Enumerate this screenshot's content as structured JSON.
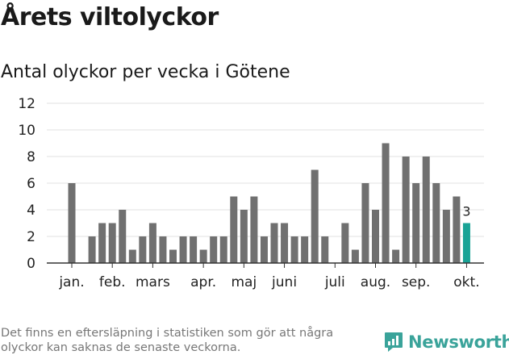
{
  "header": {
    "title": "Årets viltolyckor",
    "subtitle": "Antal olyckor per vecka i Götene"
  },
  "footer": {
    "note": "Det finns en eftersläpning i statistiken som gör att några olyckor kan saknas de senaste veckorna.",
    "brand": "Newsworthy"
  },
  "colors": {
    "bar": "#707070",
    "highlight": "#1aa396",
    "grid": "#e2e2e2",
    "axis": "#333333",
    "brand": "#3aa39a"
  },
  "chart_data": {
    "type": "bar",
    "x": [
      1,
      2,
      3,
      4,
      5,
      6,
      7,
      8,
      9,
      10,
      11,
      12,
      13,
      14,
      15,
      16,
      17,
      18,
      19,
      20,
      21,
      22,
      23,
      24,
      25,
      26,
      27,
      28,
      29,
      30,
      31,
      32,
      33,
      34,
      35,
      36,
      37,
      38,
      39,
      40
    ],
    "values": [
      6,
      0,
      2,
      3,
      3,
      4,
      1,
      2,
      3,
      2,
      1,
      2,
      2,
      1,
      2,
      2,
      5,
      4,
      5,
      2,
      3,
      3,
      2,
      2,
      7,
      2,
      0,
      3,
      1,
      6,
      4,
      9,
      1,
      8,
      6,
      8,
      6,
      4,
      5,
      3
    ],
    "ylim": [
      0,
      12
    ],
    "yticks": [
      0,
      2,
      4,
      6,
      8,
      10,
      12
    ],
    "month_labels": [
      {
        "label": "jan.",
        "x": 1
      },
      {
        "label": "feb.",
        "x": 5
      },
      {
        "label": "mars",
        "x": 9
      },
      {
        "label": "apr.",
        "x": 14
      },
      {
        "label": "maj",
        "x": 18
      },
      {
        "label": "juni",
        "x": 22
      },
      {
        "label": "juli",
        "x": 27
      },
      {
        "label": "aug.",
        "x": 31
      },
      {
        "label": "sep.",
        "x": 35
      },
      {
        "label": "okt.",
        "x": 40
      }
    ],
    "highlight_index": 39,
    "highlight_label": "3",
    "grid": true,
    "legend": "none"
  }
}
